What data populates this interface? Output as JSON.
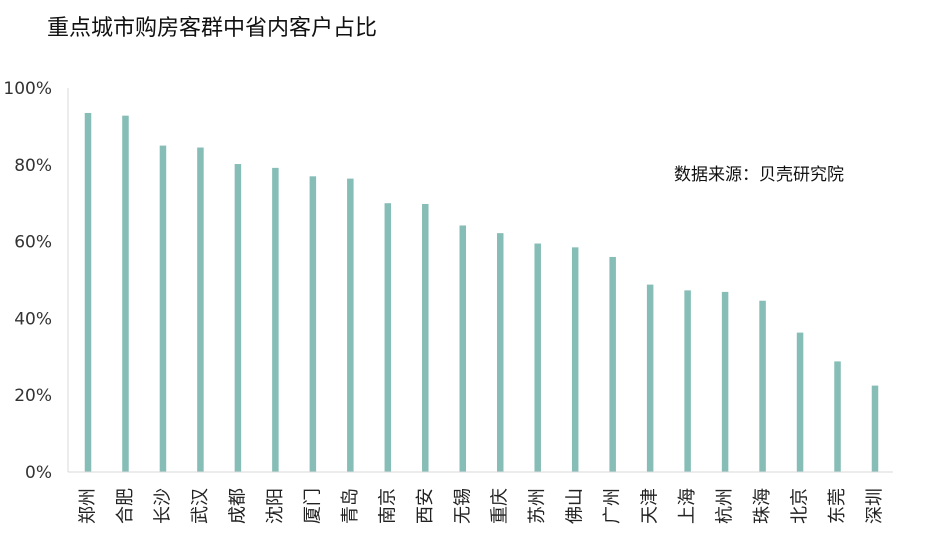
{
  "chart_data": {
    "type": "bar",
    "title": "重点城市购房客群中省内客户占比",
    "source": "数据来源：贝壳研究院",
    "xlabel": "",
    "ylabel": "",
    "ylim": [
      0,
      100
    ],
    "y_ticks": [
      "0%",
      "20%",
      "40%",
      "60%",
      "80%",
      "100%"
    ],
    "grid": false,
    "bar_color": "#86bdb6",
    "categories": [
      "郑州",
      "合肥",
      "长沙",
      "武汉",
      "成都",
      "沈阳",
      "厦门",
      "青岛",
      "南京",
      "西安",
      "无锡",
      "重庆",
      "苏州",
      "佛山",
      "广州",
      "天津",
      "上海",
      "杭州",
      "珠海",
      "北京",
      "东莞",
      "深圳"
    ],
    "values": [
      93.5,
      92.8,
      85,
      84.5,
      80.2,
      79.2,
      77,
      76.4,
      70,
      69.8,
      64.2,
      62.2,
      59.5,
      58.5,
      56,
      48.8,
      47.3,
      46.9,
      44.6,
      36.3,
      28.8,
      22.5
    ]
  }
}
